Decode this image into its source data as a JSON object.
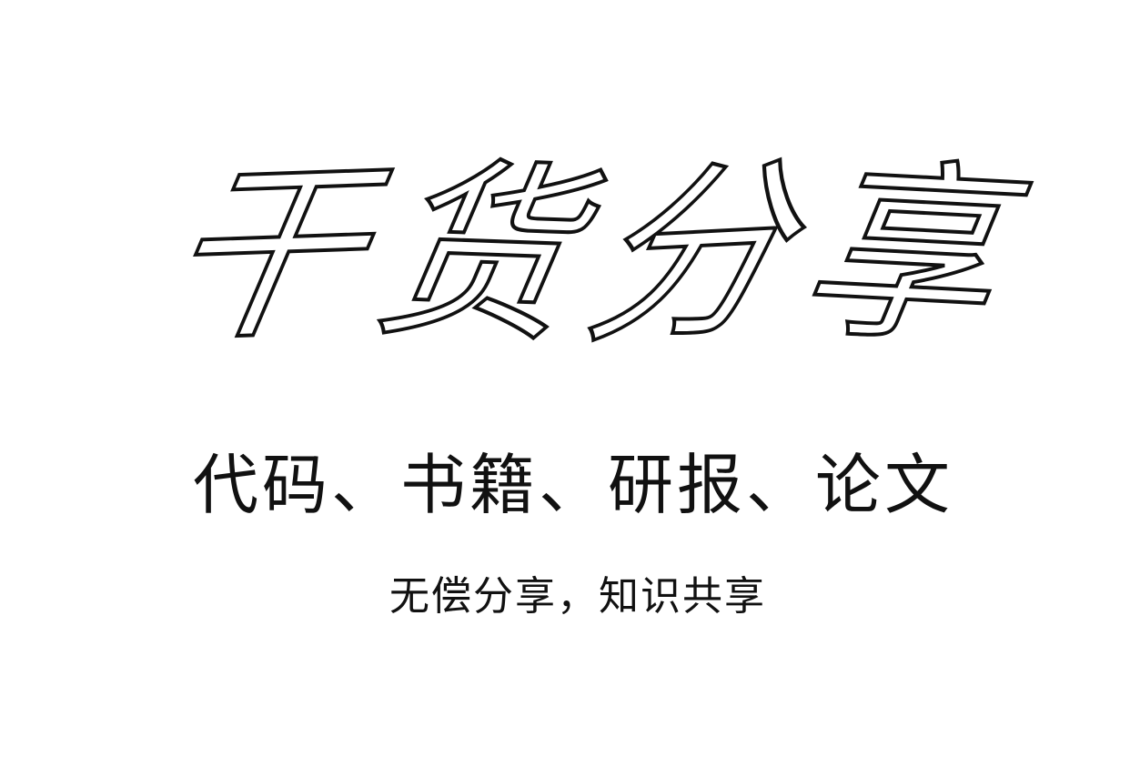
{
  "calligraphy_title": {
    "chars": [
      "干",
      "货",
      "分",
      "享"
    ]
  },
  "subtitle": "代码、书籍、研报、论文",
  "tagline": "无偿分享，知识共享"
}
